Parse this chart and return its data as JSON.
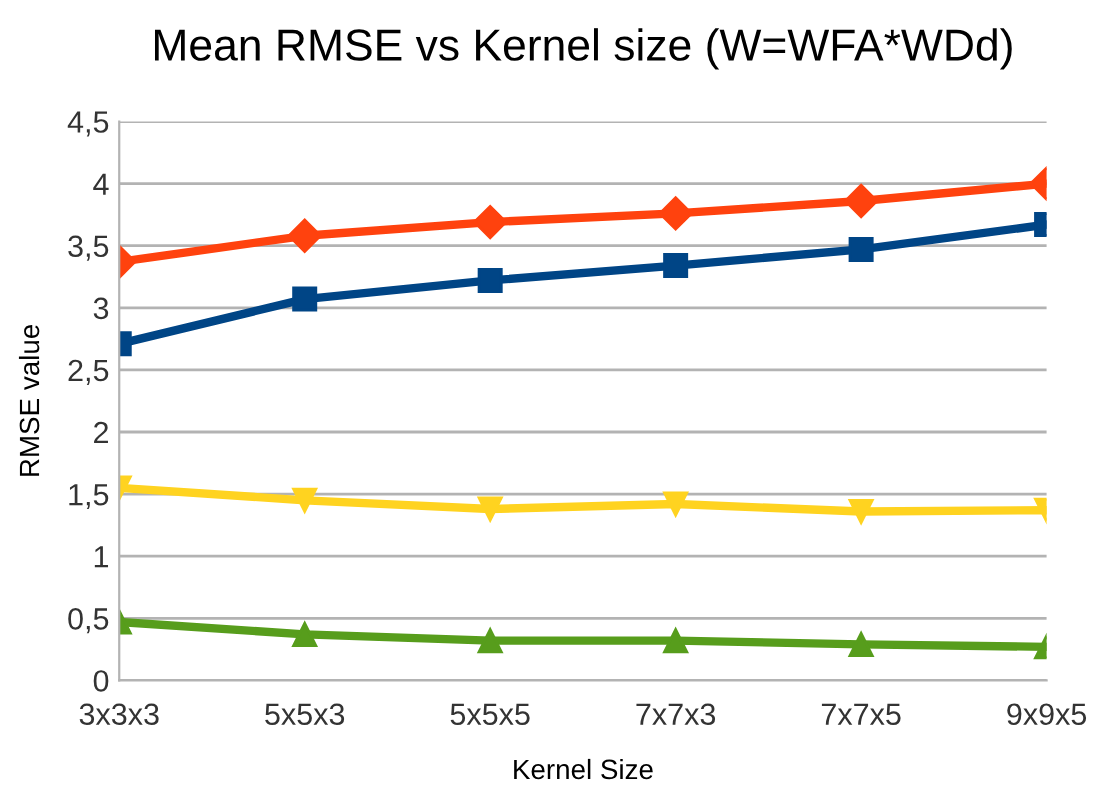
{
  "chart_data": {
    "type": "line",
    "title": "Mean RMSE vs Kernel size (W=WFA*WDd)",
    "xlabel": "Kernel Size",
    "ylabel": "RMSE value",
    "categories": [
      "3x3x3",
      "5x5x3",
      "5x5x5",
      "7x7x3",
      "7x7x5",
      "9x9x5"
    ],
    "series": [
      {
        "color": "#ff420e",
        "marker": "diamond",
        "values": [
          3.37,
          3.58,
          3.69,
          3.76,
          3.86,
          4.0
        ]
      },
      {
        "color": "#004586",
        "marker": "square",
        "values": [
          2.71,
          3.07,
          3.22,
          3.34,
          3.47,
          3.67
        ]
      },
      {
        "color": "#ffd320",
        "marker": "triangle_down",
        "values": [
          1.55,
          1.45,
          1.38,
          1.42,
          1.36,
          1.37
        ]
      },
      {
        "color": "#579d1c",
        "marker": "triangle",
        "values": [
          0.47,
          0.37,
          0.32,
          0.32,
          0.29,
          0.27
        ]
      }
    ],
    "ylim": [
      0,
      4.5
    ],
    "yticks": [
      0,
      {
        "value": 0.5,
        "label": "0,5"
      },
      1,
      {
        "value": 1.5,
        "label": "1,5"
      },
      2,
      {
        "value": 2.5,
        "label": "2,5"
      },
      3,
      {
        "value": 3.5,
        "label": "3,5"
      },
      4,
      {
        "value": 4.5,
        "label": "4,5"
      }
    ],
    "grid": "y",
    "legend": false,
    "line_style": "solid"
  }
}
